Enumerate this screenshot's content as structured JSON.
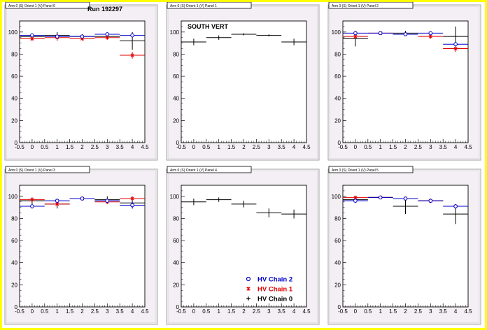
{
  "header": {
    "run_label": "Run 192297"
  },
  "legend": {
    "entries": [
      {
        "label": "HV Chain 2",
        "color": "#0000cc",
        "marker": "open-circle"
      },
      {
        "label": "HV Chain 1",
        "color": "#e00000",
        "marker": "star"
      },
      {
        "label": "HV Chain 0",
        "color": "#000000",
        "marker": "cross"
      }
    ]
  },
  "colors": {
    "frame_yellow": "#ffff00",
    "pad_fill": "#f4eff4",
    "frame_gray": "#c8c8c8"
  },
  "chart_data": [
    {
      "type": "scatter",
      "title": "Arm 0 (S) Orient 1 (V) Panel 0",
      "subtitle": "",
      "xlabel": "",
      "ylabel": "",
      "xlim": [
        -0.5,
        4.5
      ],
      "ylim": [
        0,
        110
      ],
      "x_ticks": [
        "-0.5",
        "0",
        "0.5",
        "1",
        "1.5",
        "2",
        "2.5",
        "3",
        "3.5",
        "4",
        "4.5"
      ],
      "y_ticks": [
        "0",
        "20",
        "40",
        "60",
        "80",
        "100"
      ],
      "grid": false,
      "series": [
        {
          "name": "HV Chain 2",
          "color": "#0000cc",
          "marker": "circle",
          "x": [
            0,
            1,
            2,
            3,
            4
          ],
          "y": [
            97,
            96,
            96,
            98,
            97
          ],
          "yerr": [
            1,
            1,
            1,
            1,
            1
          ]
        },
        {
          "name": "HV Chain 1",
          "color": "#e00000",
          "marker": "star",
          "x": [
            0,
            1,
            2,
            3,
            4
          ],
          "y": [
            94,
            95,
            94,
            95,
            79
          ],
          "yerr": [
            2,
            3,
            2,
            2,
            3
          ]
        },
        {
          "name": "HV Chain 0",
          "color": "#000000",
          "marker": "cross",
          "x": [
            0,
            1,
            2,
            3,
            4
          ],
          "y": [
            96,
            97,
            96,
            96,
            92
          ],
          "yerr": [
            2,
            3,
            2,
            2,
            8
          ]
        }
      ]
    },
    {
      "type": "scatter",
      "title": "Arm 0 (S) Orient 1 (V) Panel 1",
      "subtitle": "SOUTH VERT",
      "xlabel": "",
      "ylabel": "",
      "xlim": [
        -0.5,
        4.5
      ],
      "ylim": [
        0,
        110
      ],
      "x_ticks": [
        "-0.5",
        "0",
        "0.5",
        "1",
        "1.5",
        "2",
        "2.5",
        "3",
        "3.5",
        "4",
        "4.5"
      ],
      "y_ticks": [
        "0",
        "20",
        "40",
        "60",
        "80",
        "100"
      ],
      "grid": false,
      "series": [
        {
          "name": "HV Chain 0",
          "color": "#000000",
          "marker": "cross",
          "x": [
            0,
            1,
            2,
            3,
            4
          ],
          "y": [
            91,
            95,
            98,
            97,
            91
          ],
          "yerr": [
            3,
            2,
            1,
            1,
            3
          ]
        }
      ]
    },
    {
      "type": "scatter",
      "title": "Arm 0 (S) Orient 1 (V) Panel 2",
      "subtitle": "",
      "xlabel": "",
      "ylabel": "",
      "xlim": [
        -0.5,
        4.5
      ],
      "ylim": [
        0,
        110
      ],
      "x_ticks": [
        "-0.5",
        "0",
        "0.5",
        "1",
        "1.5",
        "2",
        "2.5",
        "3",
        "3.5",
        "4",
        "4.5"
      ],
      "y_ticks": [
        "0",
        "20",
        "40",
        "60",
        "80",
        "100"
      ],
      "grid": false,
      "series": [
        {
          "name": "HV Chain 2",
          "color": "#0000cc",
          "marker": "circle",
          "x": [
            0,
            1,
            2,
            3,
            4
          ],
          "y": [
            99,
            99,
            98,
            99,
            89
          ],
          "yerr": [
            1,
            1,
            1,
            1,
            2
          ]
        },
        {
          "name": "HV Chain 1",
          "color": "#e00000",
          "marker": "star",
          "x": [
            0,
            1,
            2,
            3,
            4
          ],
          "y": [
            96,
            99,
            98,
            96,
            85
          ],
          "yerr": [
            2,
            1,
            1,
            2,
            3
          ]
        },
        {
          "name": "HV Chain 0",
          "color": "#000000",
          "marker": "cross",
          "x": [
            0,
            2,
            4
          ],
          "y": [
            94,
            99,
            96
          ],
          "yerr": [
            7,
            2,
            9
          ]
        }
      ]
    },
    {
      "type": "scatter",
      "title": "Arm 0 (S) Orient 1 (V) Panel 3",
      "subtitle": "",
      "xlabel": "",
      "ylabel": "",
      "xlim": [
        -0.5,
        4.5
      ],
      "ylim": [
        0,
        110
      ],
      "x_ticks": [
        "-0.5",
        "0",
        "0.5",
        "1",
        "1.5",
        "2",
        "2.5",
        "3",
        "3.5",
        "4",
        "4.5"
      ],
      "y_ticks": [
        "0",
        "20",
        "40",
        "60",
        "80",
        "100"
      ],
      "grid": false,
      "series": [
        {
          "name": "HV Chain 2",
          "color": "#0000cc",
          "marker": "circle",
          "x": [
            0,
            1,
            2,
            3,
            4
          ],
          "y": [
            91,
            96,
            98,
            96,
            92
          ],
          "yerr": [
            2,
            2,
            1,
            2,
            3
          ]
        },
        {
          "name": "HV Chain 1",
          "color": "#e00000",
          "marker": "star",
          "x": [
            0,
            1,
            2,
            3,
            4
          ],
          "y": [
            97,
            93,
            98,
            95,
            98
          ],
          "yerr": [
            2,
            2,
            1,
            2,
            2
          ]
        },
        {
          "name": "HV Chain 0",
          "color": "#000000",
          "marker": "cross",
          "x": [
            0,
            1,
            2,
            3,
            4
          ],
          "y": [
            96,
            93,
            98,
            97,
            94
          ],
          "yerr": [
            3,
            4,
            1,
            3,
            5
          ]
        }
      ]
    },
    {
      "type": "scatter",
      "title": "Arm 0 (S) Orient 1 (V) Panel 4",
      "subtitle": "",
      "xlabel": "",
      "ylabel": "",
      "xlim": [
        -0.5,
        4.5
      ],
      "ylim": [
        0,
        110
      ],
      "x_ticks": [
        "-0.5",
        "0",
        "0.5",
        "1",
        "1.5",
        "2",
        "2.5",
        "3",
        "3.5",
        "4",
        "4.5"
      ],
      "y_ticks": [
        "0",
        "20",
        "40",
        "60",
        "80",
        "100"
      ],
      "grid": false,
      "series": [
        {
          "name": "HV Chain 0",
          "color": "#000000",
          "marker": "cross",
          "x": [
            0,
            1,
            2,
            3,
            4
          ],
          "y": [
            95,
            97,
            93,
            85,
            84
          ],
          "yerr": [
            3,
            2,
            3,
            4,
            4
          ]
        }
      ]
    },
    {
      "type": "scatter",
      "title": "Arm 0 (S) Orient 1 (V) Panel 5",
      "subtitle": "",
      "xlabel": "",
      "ylabel": "",
      "xlim": [
        -0.5,
        4.5
      ],
      "ylim": [
        0,
        110
      ],
      "x_ticks": [
        "-0.5",
        "0",
        "0.5",
        "1",
        "1.5",
        "2",
        "2.5",
        "3",
        "3.5",
        "4",
        "4.5"
      ],
      "y_ticks": [
        "0",
        "20",
        "40",
        "60",
        "80",
        "100"
      ],
      "grid": false,
      "series": [
        {
          "name": "HV Chain 2",
          "color": "#0000cc",
          "marker": "circle",
          "x": [
            0,
            1,
            2,
            3,
            4
          ],
          "y": [
            96,
            99,
            98,
            96,
            91
          ],
          "yerr": [
            1,
            1,
            1,
            1,
            2
          ]
        },
        {
          "name": "HV Chain 1",
          "color": "#e00000",
          "marker": "star",
          "x": [
            0,
            1,
            2,
            3,
            4
          ],
          "y": [
            99,
            99,
            98,
            96,
            91
          ],
          "yerr": [
            1,
            1,
            1,
            2,
            2
          ]
        },
        {
          "name": "HV Chain 0",
          "color": "#000000",
          "marker": "cross",
          "x": [
            0,
            1,
            2,
            3,
            4
          ],
          "y": [
            97,
            99,
            91,
            96,
            84
          ],
          "yerr": [
            2,
            1,
            7,
            2,
            9
          ]
        }
      ]
    }
  ]
}
